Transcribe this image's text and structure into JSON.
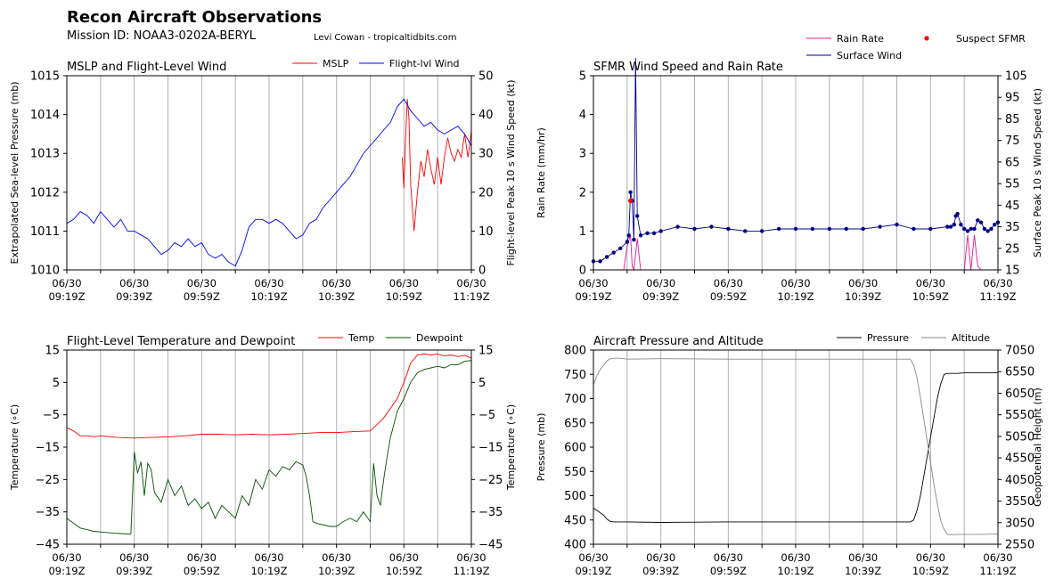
{
  "header": {
    "title": "Recon Aircraft Observations",
    "mission": "Mission ID: NOAA3-0202A-BERYL",
    "credit": "Levi Cowan - tropicaltidbits.com"
  },
  "time_ticks": [
    "06/30\n09:19Z",
    "06/30\n09:39Z",
    "06/30\n09:59Z",
    "06/30\n10:19Z",
    "06/30\n10:39Z",
    "06/30\n10:59Z",
    "06/30\n11:19Z"
  ],
  "chart_data": [
    {
      "id": "mslp_wind",
      "type": "line",
      "title": "MSLP and Flight-Level Wind",
      "x_range_min": [
        0,
        120
      ],
      "ylabel": "Extrapolated Sea-level Pressure (mb)",
      "ylim": [
        1010,
        1015
      ],
      "yticks": [
        1010,
        1011,
        1012,
        1013,
        1014,
        1015
      ],
      "y2label": "Flight-level Peak 10 s Wind Speed (kt)",
      "y2lim": [
        0,
        50
      ],
      "y2ticks": [
        0,
        10,
        20,
        30,
        40,
        50
      ],
      "series": [
        {
          "name": "MSLP",
          "color": "#ff0000",
          "axis": "left",
          "x": [
            99.5,
            100,
            100.5,
            101,
            101.5,
            102,
            103,
            104,
            105,
            106,
            107,
            108,
            109,
            110,
            111,
            112,
            113,
            114,
            115,
            116,
            117,
            118,
            119,
            119.5,
            120
          ],
          "y": [
            1012.9,
            1012.1,
            1013.4,
            1014.4,
            1013.9,
            1012.2,
            1011.0,
            1012.0,
            1012.8,
            1012.4,
            1013.1,
            1012.6,
            1012.2,
            1012.9,
            1012.2,
            1012.9,
            1013.4,
            1013.0,
            1012.8,
            1013.1,
            1012.9,
            1013.5,
            1012.9,
            1013.2,
            1013.6
          ]
        },
        {
          "name": "Flight-lvl Wind",
          "color": "#0000ff",
          "axis": "right",
          "x": [
            0,
            2,
            4,
            6,
            8,
            10,
            12,
            14,
            16,
            18,
            20,
            22,
            24,
            26,
            28,
            30,
            32,
            34,
            36,
            38,
            40,
            42,
            44,
            46,
            48,
            50,
            52,
            54,
            56,
            58,
            60,
            62,
            64,
            66,
            68,
            70,
            72,
            74,
            76,
            78,
            80,
            82,
            84,
            86,
            88,
            90,
            92,
            94,
            96,
            98,
            100,
            102,
            104,
            106,
            108,
            110,
            112,
            114,
            116,
            118,
            120
          ],
          "y": [
            12,
            13,
            15,
            14,
            12,
            15,
            13,
            11,
            13,
            10,
            10,
            9,
            8,
            6,
            4,
            5,
            7,
            6,
            8,
            6,
            7,
            4,
            3,
            4,
            2,
            1,
            5,
            11,
            13,
            13,
            12,
            13,
            12,
            10,
            8,
            9,
            12,
            13,
            16,
            18,
            20,
            22,
            24,
            27,
            30,
            32,
            34,
            36,
            38,
            42,
            44,
            41,
            39,
            37,
            38,
            36,
            35,
            36,
            37,
            35,
            32
          ]
        }
      ]
    },
    {
      "id": "sfmr_rain",
      "type": "line",
      "title": "SFMR Wind Speed and Rain Rate",
      "x_range_min": [
        0,
        120
      ],
      "ylabel": "Rain Rate (mm/hr)",
      "ylim": [
        0,
        5
      ],
      "yticks": [
        0,
        1,
        2,
        3,
        4,
        5
      ],
      "y2label": "Surface Peak 10 s Wind Speed (kt)",
      "y2lim": [
        15,
        105
      ],
      "y2ticks": [
        15,
        25,
        35,
        45,
        55,
        65,
        75,
        85,
        95,
        105
      ],
      "series": [
        {
          "name": "Rain Rate",
          "color": "#e0189a",
          "axis": "left",
          "x": [
            0,
            9,
            10,
            11,
            11.5,
            12,
            13,
            14,
            15,
            16,
            110,
            111,
            112,
            113,
            114,
            115,
            116,
            120
          ],
          "y": [
            0,
            0,
            0.6,
            0.9,
            0.1,
            0,
            0.8,
            0,
            0,
            0,
            0,
            0.9,
            0,
            0.9,
            0.1,
            0,
            0,
            0
          ]
        },
        {
          "name": "Surface Wind",
          "color": "#00008b",
          "axis": "right",
          "x": [
            0,
            2,
            4,
            6,
            8,
            10,
            10.5,
            11,
            11.5,
            12,
            12.5,
            13,
            14,
            16,
            18,
            20,
            25,
            30,
            35,
            40,
            45,
            50,
            55,
            60,
            65,
            70,
            75,
            80,
            85,
            90,
            95,
            100,
            105,
            106,
            107,
            107.5,
            108,
            109,
            110,
            111,
            112,
            113,
            114,
            115,
            116,
            117,
            118,
            119,
            120
          ],
          "y": [
            19,
            19,
            21,
            23,
            25,
            28,
            31,
            51,
            47,
            29,
            115,
            40,
            31,
            32,
            32,
            33,
            35,
            34,
            35,
            34,
            33,
            33,
            34,
            34,
            34,
            34,
            34,
            34,
            35,
            36,
            34,
            34,
            35,
            35,
            36,
            40,
            41,
            36,
            34,
            33,
            34,
            34,
            38,
            37,
            34,
            33,
            34,
            36,
            37
          ]
        },
        {
          "name": "Suspect SFMR",
          "color": "#ff0000",
          "axis": "right",
          "style": "marker",
          "x": [
            11
          ],
          "y": [
            47
          ]
        }
      ]
    },
    {
      "id": "temp_dew",
      "type": "line",
      "title": "Flight-Level Temperature and Dewpoint",
      "x_range_min": [
        0,
        120
      ],
      "ylabel": "Temperature (∘C)",
      "ylim": [
        -45,
        15
      ],
      "yticks": [
        -45,
        -35,
        -25,
        -15,
        -5,
        5,
        15
      ],
      "y2label": "Temperature (∘C)",
      "y2lim": [
        -45,
        15
      ],
      "y2ticks": [
        -45,
        -35,
        -25,
        -15,
        -5,
        5,
        15
      ],
      "series": [
        {
          "name": "Temp",
          "color": "#ff0000",
          "axis": "left",
          "x": [
            0,
            2,
            4,
            6,
            8,
            10,
            15,
            20,
            25,
            30,
            35,
            40,
            45,
            50,
            55,
            60,
            65,
            70,
            75,
            80,
            85,
            90,
            92,
            94,
            96,
            98,
            100,
            102,
            104,
            106,
            108,
            110,
            112,
            114,
            116,
            118,
            120
          ],
          "y": [
            -9,
            -10,
            -11.5,
            -11.5,
            -11.8,
            -11.5,
            -12.0,
            -12.2,
            -12.0,
            -11.8,
            -11.5,
            -11.0,
            -11.0,
            -11.2,
            -11.0,
            -11.2,
            -11.0,
            -10.8,
            -10.5,
            -10.5,
            -10.2,
            -10.0,
            -8.0,
            -6.0,
            -3.0,
            0.0,
            5.0,
            11.0,
            13.5,
            13.8,
            13.5,
            13.8,
            13.2,
            13.5,
            13.0,
            13.4,
            12.5
          ]
        },
        {
          "name": "Dewpoint",
          "color": "#005000",
          "axis": "left",
          "x": [
            0,
            2,
            4,
            6,
            8,
            10,
            12,
            14,
            16,
            18,
            19,
            20,
            21,
            22,
            23,
            24,
            25,
            26,
            28,
            30,
            32,
            34,
            36,
            38,
            40,
            42,
            44,
            46,
            48,
            50,
            52,
            54,
            56,
            58,
            60,
            62,
            64,
            66,
            68,
            70,
            71,
            72,
            73,
            74,
            76,
            78,
            80,
            82,
            84,
            86,
            88,
            90,
            91,
            92,
            93,
            94,
            95,
            96,
            97,
            98,
            100,
            102,
            104,
            106,
            108,
            110,
            112,
            114,
            116,
            118,
            120
          ],
          "y": [
            -37,
            -38.5,
            -40,
            -40.5,
            -41,
            -41.2,
            -41.4,
            -41.6,
            -41.7,
            -41.8,
            -41.8,
            -16.5,
            -23,
            -19.5,
            -30,
            -20,
            -22,
            -29,
            -32,
            -25,
            -30,
            -27,
            -33,
            -31,
            -34,
            -32,
            -37,
            -33,
            -35,
            -37,
            -30,
            -33,
            -25,
            -28,
            -22,
            -24,
            -21,
            -22,
            -19.5,
            -20.5,
            -24,
            -30,
            -38,
            -38.5,
            -39,
            -39.5,
            -39.5,
            -38,
            -37,
            -38,
            -35,
            -38,
            -20,
            -30,
            -33,
            -25,
            -18,
            -12,
            -8,
            -4,
            0,
            5,
            8,
            9,
            9.5,
            10,
            9.5,
            10.5,
            10.5,
            11.5,
            11.8
          ]
        }
      ]
    },
    {
      "id": "press_alt",
      "type": "line",
      "title": "Aircraft Pressure and Altitude",
      "x_range_min": [
        0,
        120
      ],
      "ylabel": "Pressure (mb)",
      "ylim": [
        400,
        800
      ],
      "yticks": [
        400,
        450,
        500,
        550,
        600,
        650,
        700,
        750,
        800
      ],
      "y2label": "Geopotential Height (m)",
      "y2lim": [
        2550,
        7050
      ],
      "y2ticks": [
        2550,
        3050,
        3550,
        4050,
        4550,
        5050,
        5550,
        6050,
        6550,
        7050
      ],
      "series": [
        {
          "name": "Pressure",
          "color": "#000000",
          "axis": "left",
          "x": [
            0,
            1,
            2,
            3,
            4,
            5,
            6,
            8,
            10,
            20,
            40,
            60,
            80,
            90,
            94,
            95,
            96,
            97,
            98,
            99,
            100,
            101,
            102,
            103,
            104,
            105,
            106,
            108,
            110,
            115,
            120
          ],
          "y": [
            474,
            470,
            465,
            460,
            452,
            447,
            446,
            446,
            446,
            445,
            446,
            446,
            446,
            446,
            446,
            450,
            470,
            500,
            540,
            580,
            620,
            660,
            700,
            730,
            750,
            752,
            752,
            752,
            753,
            753,
            753
          ]
        },
        {
          "name": "Altitude",
          "color": "#888888",
          "axis": "right",
          "x": [
            0,
            1,
            2,
            3,
            4,
            5,
            6,
            8,
            10,
            20,
            40,
            60,
            80,
            90,
            94,
            95,
            96,
            97,
            98,
            99,
            100,
            101,
            102,
            103,
            104,
            105,
            106,
            108,
            110,
            115,
            120
          ],
          "y": [
            6250,
            6450,
            6600,
            6700,
            6800,
            6850,
            6860,
            6860,
            6840,
            6850,
            6840,
            6840,
            6840,
            6840,
            6840,
            6700,
            6400,
            5950,
            5450,
            4950,
            4450,
            3950,
            3500,
            3100,
            2900,
            2780,
            2770,
            2780,
            2780,
            2780,
            2790
          ]
        }
      ]
    }
  ]
}
